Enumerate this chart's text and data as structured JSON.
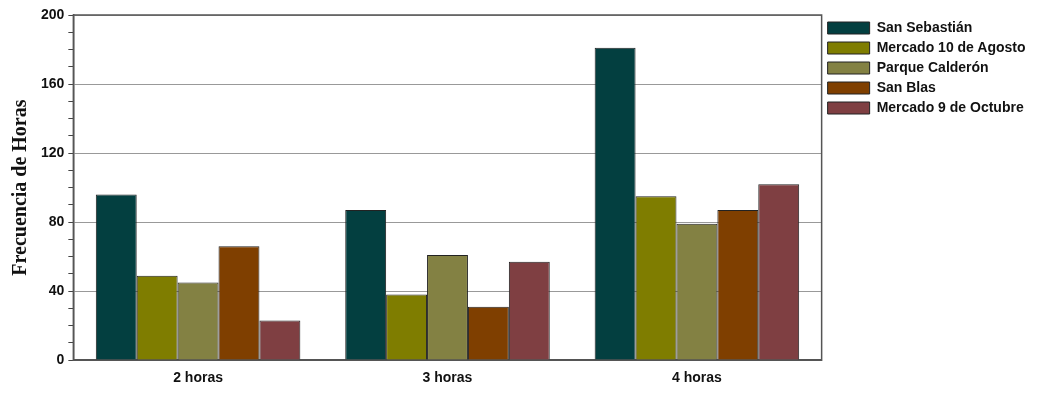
{
  "chart_data": {
    "type": "bar",
    "ylabel": "Frecuencia de Horas",
    "categories": [
      "2 horas",
      "3 horas",
      "4 horas"
    ],
    "series": [
      {
        "name": "San Sebastián",
        "color": "#033f40",
        "values": [
          96,
          87,
          181
        ]
      },
      {
        "name": "Mercado 10 de Agosto",
        "color": "#7f7d00",
        "values": [
          49,
          38,
          95
        ]
      },
      {
        "name": "Parque Calderón",
        "color": "#838143",
        "values": [
          45,
          61,
          79
        ]
      },
      {
        "name": "San Blas",
        "color": "#7f3f00",
        "values": [
          66,
          31,
          87
        ]
      },
      {
        "name": "Mercado 9 de Octubre",
        "color": "#7f3f42",
        "values": [
          23,
          57,
          102
        ]
      }
    ],
    "ylim": [
      0,
      200
    ],
    "yticks": [
      0,
      {
        "value": 10,
        "label": null
      },
      {
        "value": 20,
        "label": null
      },
      {
        "value": 30,
        "label": null
      },
      40,
      {
        "value": 50,
        "label": null
      },
      {
        "value": 60,
        "label": null
      },
      {
        "value": 70,
        "label": null
      },
      80,
      {
        "value": 90,
        "label": null
      },
      {
        "value": 100,
        "label": null
      },
      {
        "value": 110,
        "label": null
      },
      120,
      {
        "value": 130,
        "label": null
      },
      {
        "value": 140,
        "label": null
      },
      {
        "value": 150,
        "label": null
      },
      160,
      {
        "value": 170,
        "label": null
      },
      {
        "value": 180,
        "label": null
      },
      {
        "value": 190,
        "label": null
      },
      200
    ],
    "grid": "y",
    "legend": "right"
  }
}
